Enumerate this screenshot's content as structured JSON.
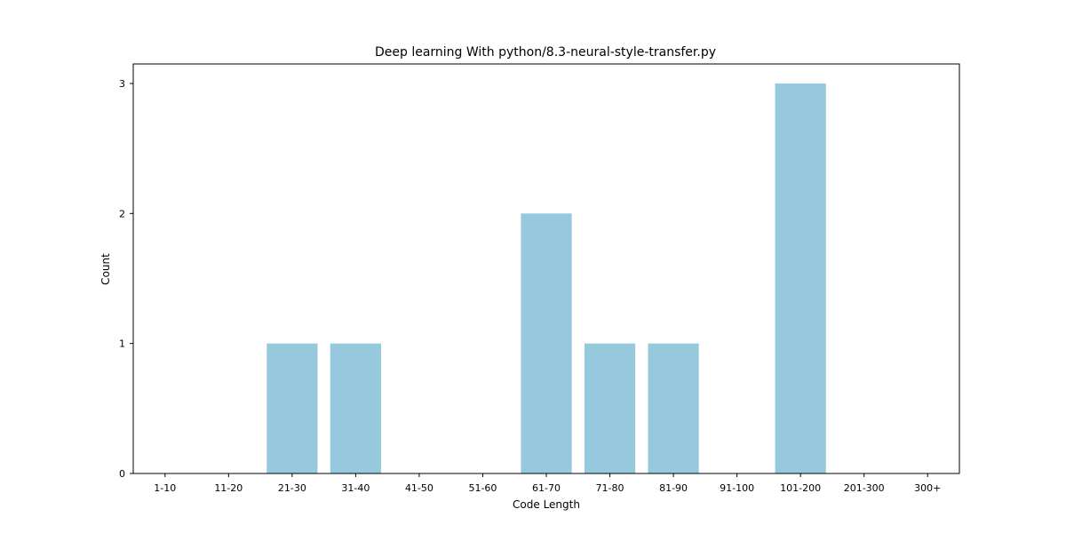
{
  "chart_data": {
    "type": "bar",
    "title": "Deep learning With python/8.3-neural-style-transfer.py",
    "xlabel": "Code Length",
    "ylabel": "Count",
    "categories": [
      "1-10",
      "11-20",
      "21-30",
      "31-40",
      "41-50",
      "51-60",
      "61-70",
      "71-80",
      "81-90",
      "91-100",
      "101-200",
      "201-300",
      "300+"
    ],
    "values": [
      0,
      0,
      1,
      1,
      0,
      0,
      2,
      1,
      1,
      0,
      3,
      0,
      0
    ],
    "ylim": [
      0,
      3.15
    ],
    "yticks": [
      0,
      1,
      2,
      3
    ],
    "bar_color": "#96c9dd",
    "grid": false,
    "legend": "none"
  }
}
